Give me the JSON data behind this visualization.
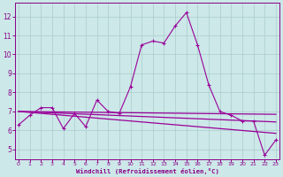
{
  "xlabel": "Windchill (Refroidissement éolien,°C)",
  "x_values": [
    0,
    1,
    2,
    3,
    4,
    5,
    6,
    7,
    8,
    9,
    10,
    11,
    12,
    13,
    14,
    15,
    16,
    17,
    18,
    19,
    20,
    21,
    22,
    23
  ],
  "main_line": [
    6.3,
    6.8,
    7.2,
    7.2,
    6.1,
    6.9,
    6.2,
    7.6,
    7.0,
    6.9,
    8.3,
    10.5,
    10.7,
    10.6,
    11.5,
    12.2,
    10.5,
    8.4,
    7.0,
    6.8,
    6.5,
    6.5,
    4.7,
    5.5
  ],
  "trend1": [
    7.0,
    6.85
  ],
  "trend2": [
    7.0,
    6.45
  ],
  "trend3": [
    7.0,
    5.85
  ],
  "line_color": "#990099",
  "bg_color": "#cce8e8",
  "grid_color": "#aacccc",
  "axis_color": "#880088",
  "ylim": [
    4.5,
    12.7
  ],
  "yticks": [
    5,
    6,
    7,
    8,
    9,
    10,
    11,
    12
  ],
  "xlim": [
    -0.3,
    23.3
  ],
  "xticks": [
    0,
    1,
    2,
    3,
    4,
    5,
    6,
    7,
    8,
    9,
    10,
    11,
    12,
    13,
    14,
    15,
    16,
    17,
    18,
    19,
    20,
    21,
    22,
    23
  ]
}
